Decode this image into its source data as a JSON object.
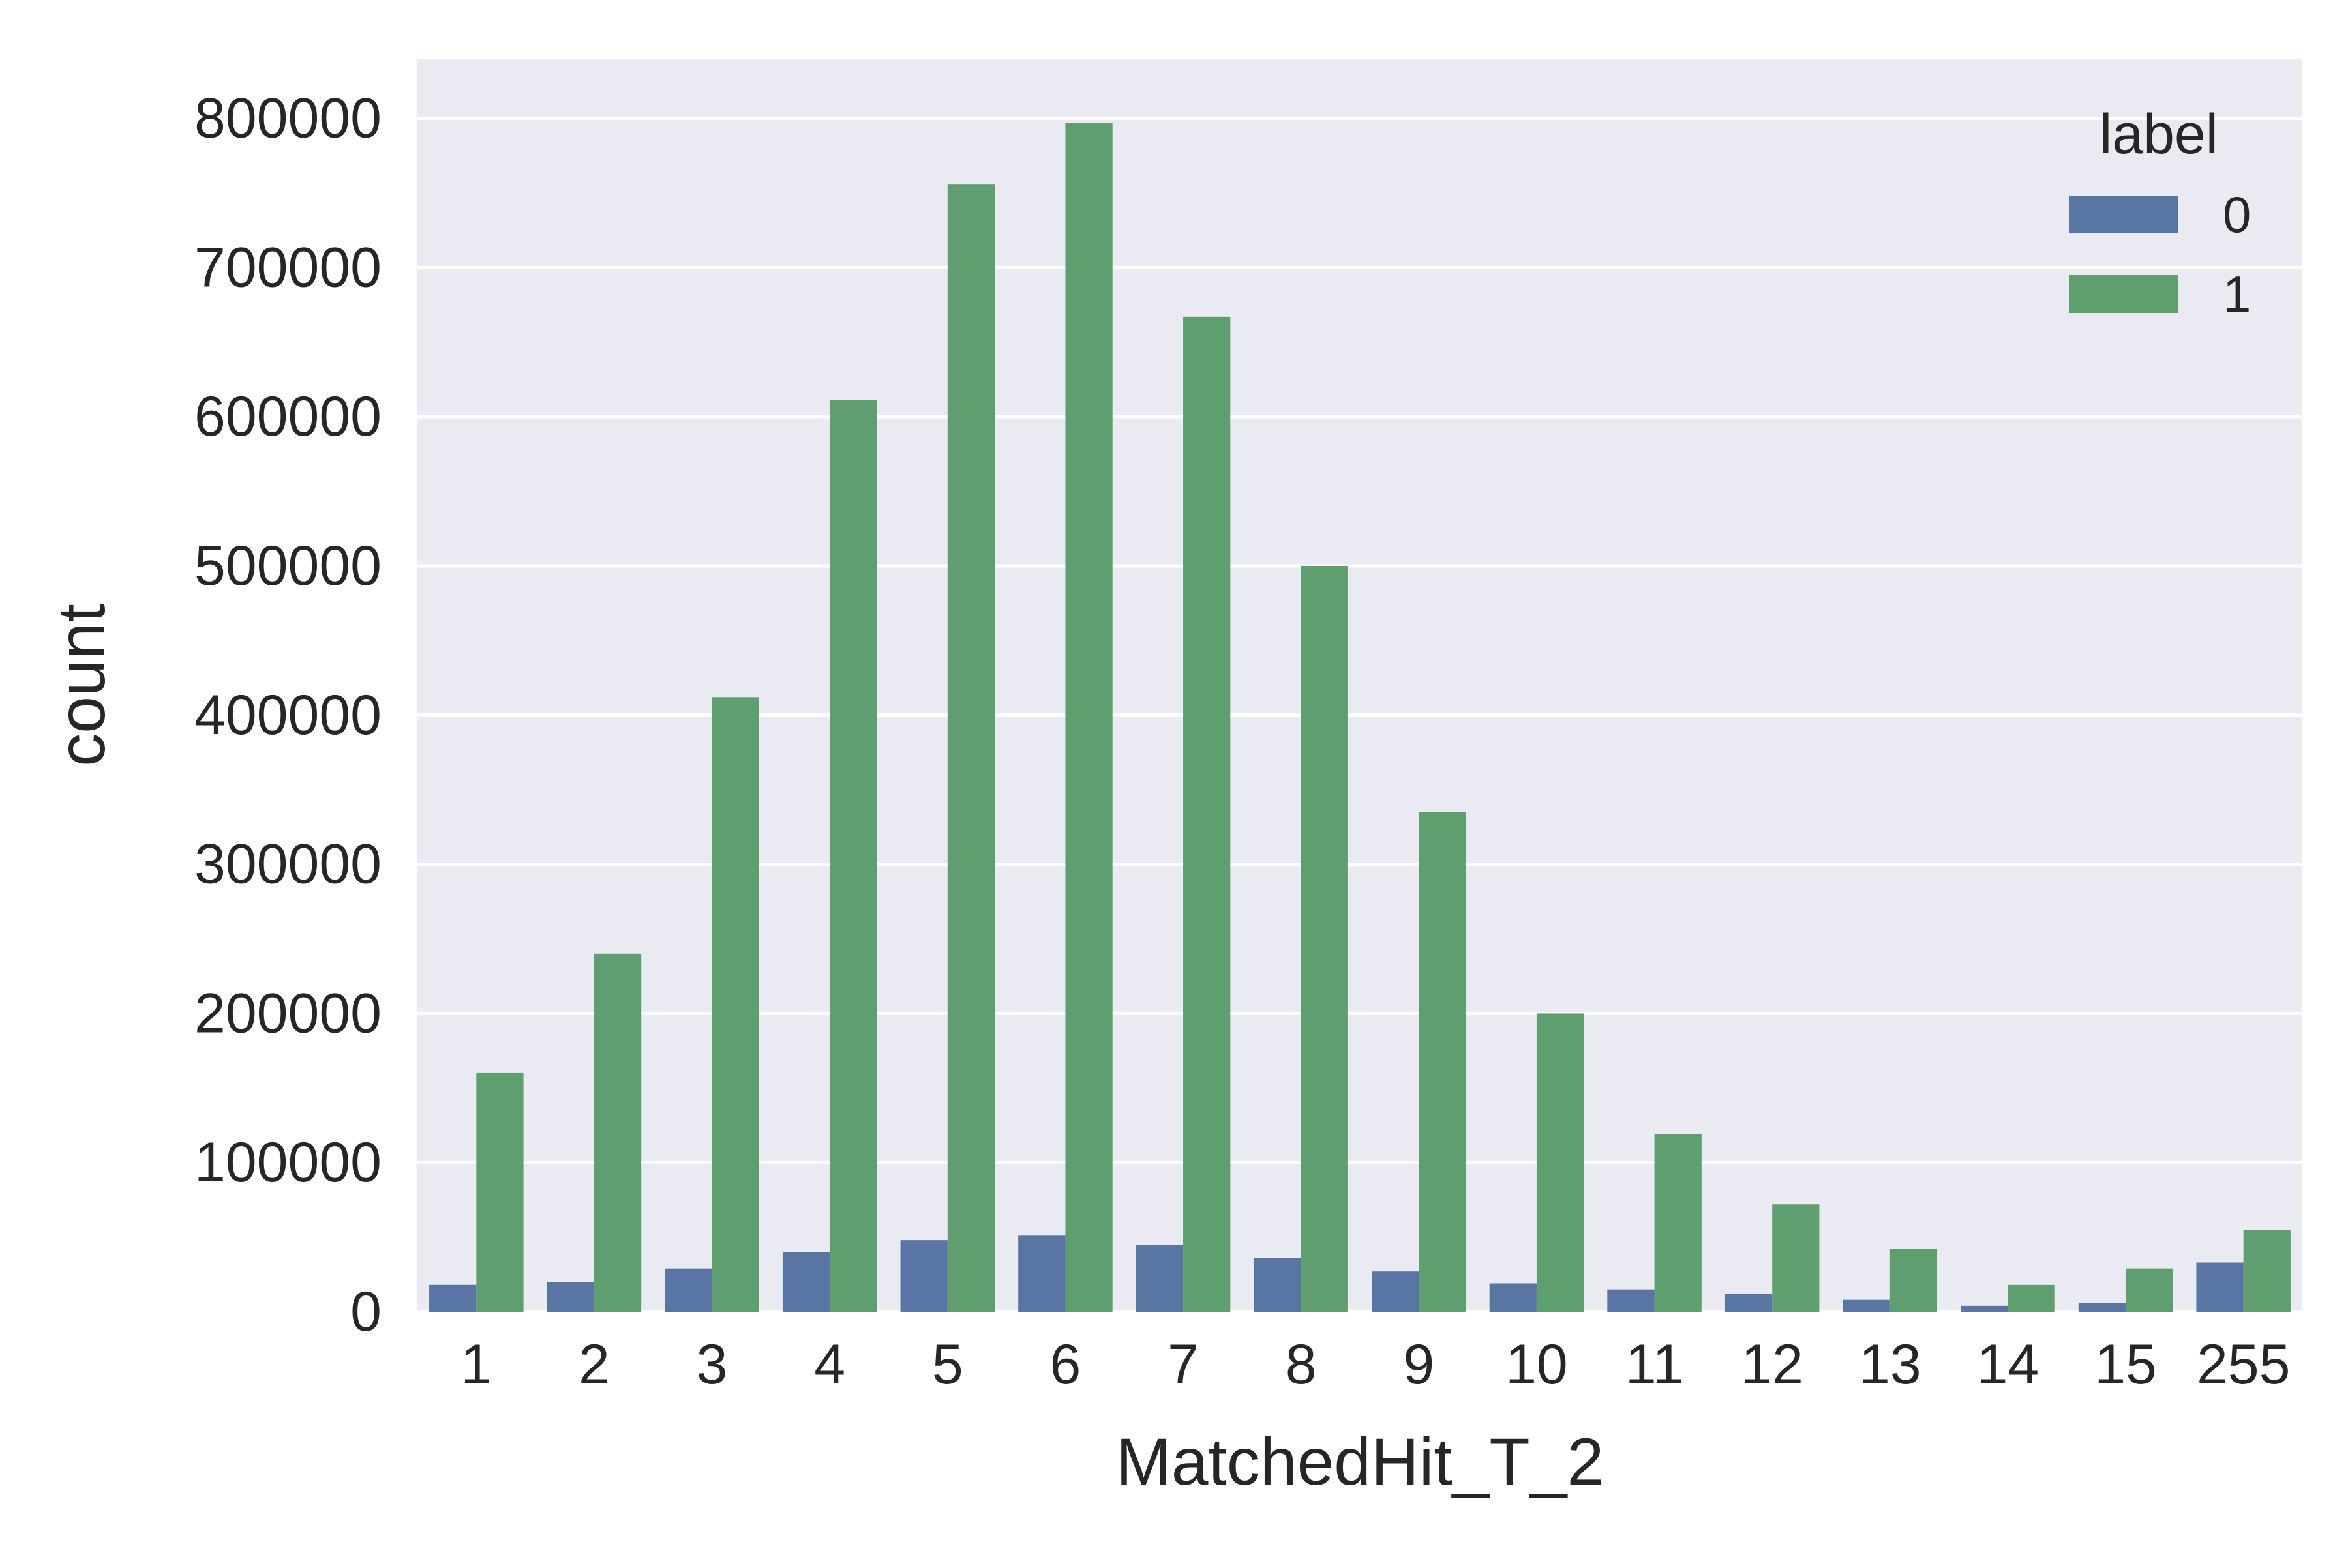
{
  "chart_data": {
    "type": "bar",
    "xlabel": "MatchedHit_T_2",
    "ylabel": "count",
    "categories": [
      "1",
      "2",
      "3",
      "4",
      "5",
      "6",
      "7",
      "8",
      "9",
      "10",
      "11",
      "12",
      "13",
      "14",
      "15",
      "255"
    ],
    "series": [
      {
        "name": "0",
        "color": "#5875a4",
        "values": [
          18000,
          20000,
          29000,
          40000,
          48000,
          51000,
          45000,
          36000,
          27000,
          19000,
          15000,
          12000,
          8000,
          4000,
          6000,
          33000
        ]
      },
      {
        "name": "1",
        "color": "#5f9e6e",
        "values": [
          160000,
          240000,
          412000,
          611000,
          756000,
          797000,
          667000,
          500000,
          335000,
          200000,
          119000,
          72000,
          42000,
          18000,
          29000,
          55000
        ]
      }
    ],
    "ylim": [
      0,
      840000
    ],
    "yticks": [
      0,
      100000,
      200000,
      300000,
      400000,
      500000,
      600000,
      700000,
      800000
    ],
    "ytick_labels": [
      "0",
      "100000",
      "200000",
      "300000",
      "400000",
      "500000",
      "600000",
      "700000",
      "800000"
    ],
    "legend": {
      "title": "label",
      "entries": [
        "0",
        "1"
      ],
      "position": "top-right"
    },
    "grid": true,
    "style": {
      "plot_background": "#eaeaf2",
      "grid_color": "#ffffff"
    }
  }
}
